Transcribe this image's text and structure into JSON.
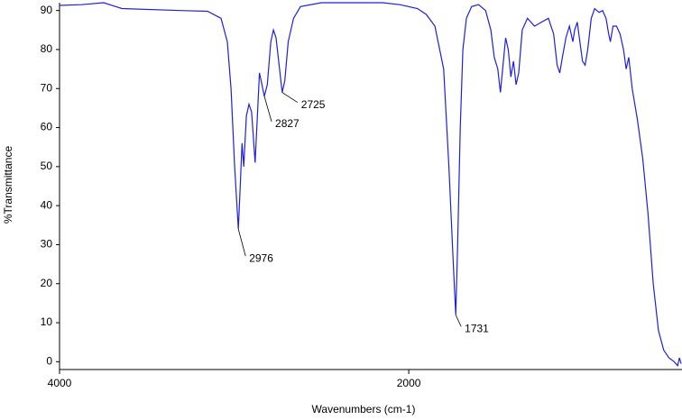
{
  "chart_data": {
    "type": "line",
    "x_label": "Wavenumbers (cm-1)",
    "y_label": "%Transmittance",
    "xlim": [
      4000,
      435
    ],
    "ylim": [
      -2,
      92
    ],
    "xticks": [
      4000,
      2000
    ],
    "yticks": [
      0,
      10,
      20,
      30,
      40,
      50,
      60,
      70,
      80,
      90
    ],
    "color": "#1f1fe0",
    "x": [
      4000,
      3876,
      3747,
      3643,
      3307,
      3152,
      3075,
      3039,
      3018,
      2997,
      2976,
      2965,
      2955,
      2945,
      2930,
      2915,
      2900,
      2880,
      2868,
      2855,
      2845,
      2827,
      2810,
      2790,
      2775,
      2760,
      2740,
      2725,
      2710,
      2690,
      2660,
      2620,
      2500,
      2300,
      2150,
      2050,
      1950,
      1900,
      1850,
      1800,
      1770,
      1745,
      1731,
      1720,
      1705,
      1690,
      1670,
      1640,
      1600,
      1560,
      1530,
      1510,
      1490,
      1475,
      1460,
      1445,
      1430,
      1415,
      1400,
      1385,
      1370,
      1350,
      1320,
      1280,
      1240,
      1200,
      1170,
      1150,
      1135,
      1120,
      1100,
      1080,
      1060,
      1050,
      1035,
      1020,
      1005,
      990,
      975,
      955,
      935,
      910,
      890,
      870,
      855,
      845,
      830,
      810,
      790,
      770,
      755,
      740,
      720,
      690,
      660,
      630,
      600,
      570,
      540,
      510,
      480,
      460,
      450,
      440
    ],
    "values": [
      91.3,
      91.5,
      92,
      90.5,
      90,
      89.8,
      88,
      82,
      70,
      50,
      34,
      45,
      56,
      50,
      63,
      66,
      64,
      51,
      62,
      74,
      72,
      68,
      71,
      82,
      85,
      83,
      75,
      69,
      72,
      82,
      88,
      91,
      92,
      92,
      92,
      91.5,
      90.5,
      89,
      86,
      75,
      50,
      25,
      12,
      30,
      60,
      80,
      88,
      91,
      91.5,
      90,
      85,
      78,
      75,
      69,
      76,
      83,
      80,
      73,
      77,
      71,
      74,
      85,
      88,
      86,
      87,
      88,
      84,
      76,
      74,
      78,
      83,
      86,
      82,
      85,
      87,
      82,
      77,
      76,
      80,
      88,
      90.5,
      89.5,
      90,
      88,
      84,
      82,
      86,
      86,
      84,
      80,
      75,
      78,
      70,
      62,
      52,
      38,
      20,
      8,
      3,
      1,
      0,
      -1,
      1,
      -0.5
    ],
    "annotations": [
      {
        "x": 2976,
        "y": 34
      },
      {
        "x": 2827,
        "y": 68
      },
      {
        "x": 2725,
        "y": 69
      },
      {
        "x": 1731,
        "y": 12
      }
    ]
  }
}
